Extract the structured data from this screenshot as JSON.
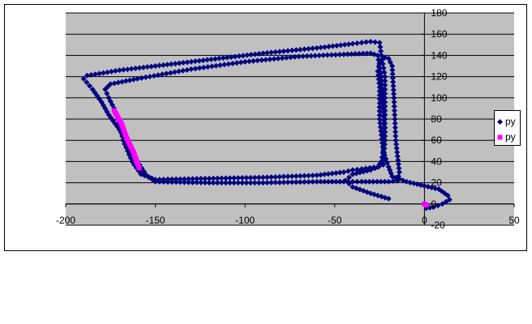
{
  "chart_data": {
    "type": "scatter",
    "title": "",
    "xlabel": "",
    "ylabel": "",
    "xlim": [
      -200,
      50
    ],
    "ylim": [
      -20,
      180
    ],
    "x_ticks": [
      "-200",
      "-150",
      "-100",
      "-50",
      "0",
      "50"
    ],
    "y_ticks": [
      "-20",
      "0",
      "20",
      "40",
      "60",
      "80",
      "100",
      "120",
      "140",
      "160",
      "180"
    ],
    "grid": "horizontal",
    "plot_background": "#c0c0c0",
    "legend_position": "right",
    "series": [
      {
        "name": "py",
        "color": "#000080",
        "marker": "diamond",
        "points": [
          [
            -20,
            5
          ],
          [
            -30,
            10
          ],
          [
            -40,
            16
          ],
          [
            -44,
            22
          ],
          [
            -40,
            28
          ],
          [
            -30,
            32
          ],
          [
            -23,
            37
          ],
          [
            -22,
            60
          ],
          [
            -23,
            90
          ],
          [
            -24,
            120
          ],
          [
            -26,
            140
          ],
          [
            -30,
            142
          ],
          [
            -45,
            141
          ],
          [
            -70,
            139
          ],
          [
            -100,
            134
          ],
          [
            -130,
            127
          ],
          [
            -160,
            118
          ],
          [
            -175,
            113
          ],
          [
            -178,
            108
          ],
          [
            -176,
            100
          ],
          [
            -173,
            90
          ],
          [
            -171,
            80
          ],
          [
            -168,
            60
          ],
          [
            -163,
            40
          ],
          [
            -158,
            28
          ],
          [
            -150,
            23
          ],
          [
            -120,
            24
          ],
          [
            -90,
            25
          ],
          [
            -60,
            27
          ],
          [
            -45,
            30
          ],
          [
            -40,
            32
          ],
          [
            -35,
            33
          ],
          [
            -26,
            35
          ],
          [
            -24,
            40
          ],
          [
            -22,
            60
          ],
          [
            -22,
            80
          ],
          [
            -22,
            100
          ],
          [
            -22,
            120
          ],
          [
            -24,
            140
          ],
          [
            -25,
            152
          ],
          [
            -30,
            153
          ],
          [
            -40,
            151
          ],
          [
            -60,
            147
          ],
          [
            -90,
            142
          ],
          [
            -130,
            134
          ],
          [
            -170,
            126
          ],
          [
            -188,
            121
          ],
          [
            -190,
            118
          ],
          [
            -185,
            108
          ],
          [
            -180,
            96
          ],
          [
            -176,
            84
          ],
          [
            -170,
            70
          ],
          [
            -165,
            55
          ],
          [
            -160,
            40
          ],
          [
            -155,
            27
          ],
          [
            -150,
            21
          ],
          [
            -120,
            20
          ],
          [
            -90,
            20
          ],
          [
            -60,
            21
          ],
          [
            -45,
            21
          ],
          [
            -35,
            21
          ],
          [
            -20,
            21
          ],
          [
            -15,
            22
          ],
          [
            -14,
            30
          ],
          [
            -16,
            60
          ],
          [
            -17,
            100
          ],
          [
            -18,
            130
          ],
          [
            -20,
            137
          ],
          [
            -22,
            138
          ],
          [
            -25,
            134
          ],
          [
            -26,
            125
          ],
          [
            -25,
            110
          ],
          [
            -25,
            80
          ],
          [
            -23,
            50
          ],
          [
            -20,
            35
          ],
          [
            -18,
            26
          ],
          [
            -10,
            21
          ],
          [
            0,
            17
          ],
          [
            8,
            14
          ],
          [
            13,
            8
          ],
          [
            14,
            4
          ],
          [
            10,
            0
          ],
          [
            5,
            -3
          ],
          [
            1,
            -4
          ],
          [
            0,
            0
          ]
        ]
      },
      {
        "name": "py",
        "color": "#ff00ff",
        "marker": "square",
        "segments": [
          [
            [
              -173,
              88
            ],
            [
              -169,
              76
            ],
            [
              -166,
              62
            ],
            [
              -162,
              48
            ],
            [
              -160,
              38
            ],
            [
              -159,
              34
            ]
          ],
          [
            [
              0,
              0
            ],
            [
              1,
              -1
            ]
          ]
        ]
      }
    ]
  }
}
